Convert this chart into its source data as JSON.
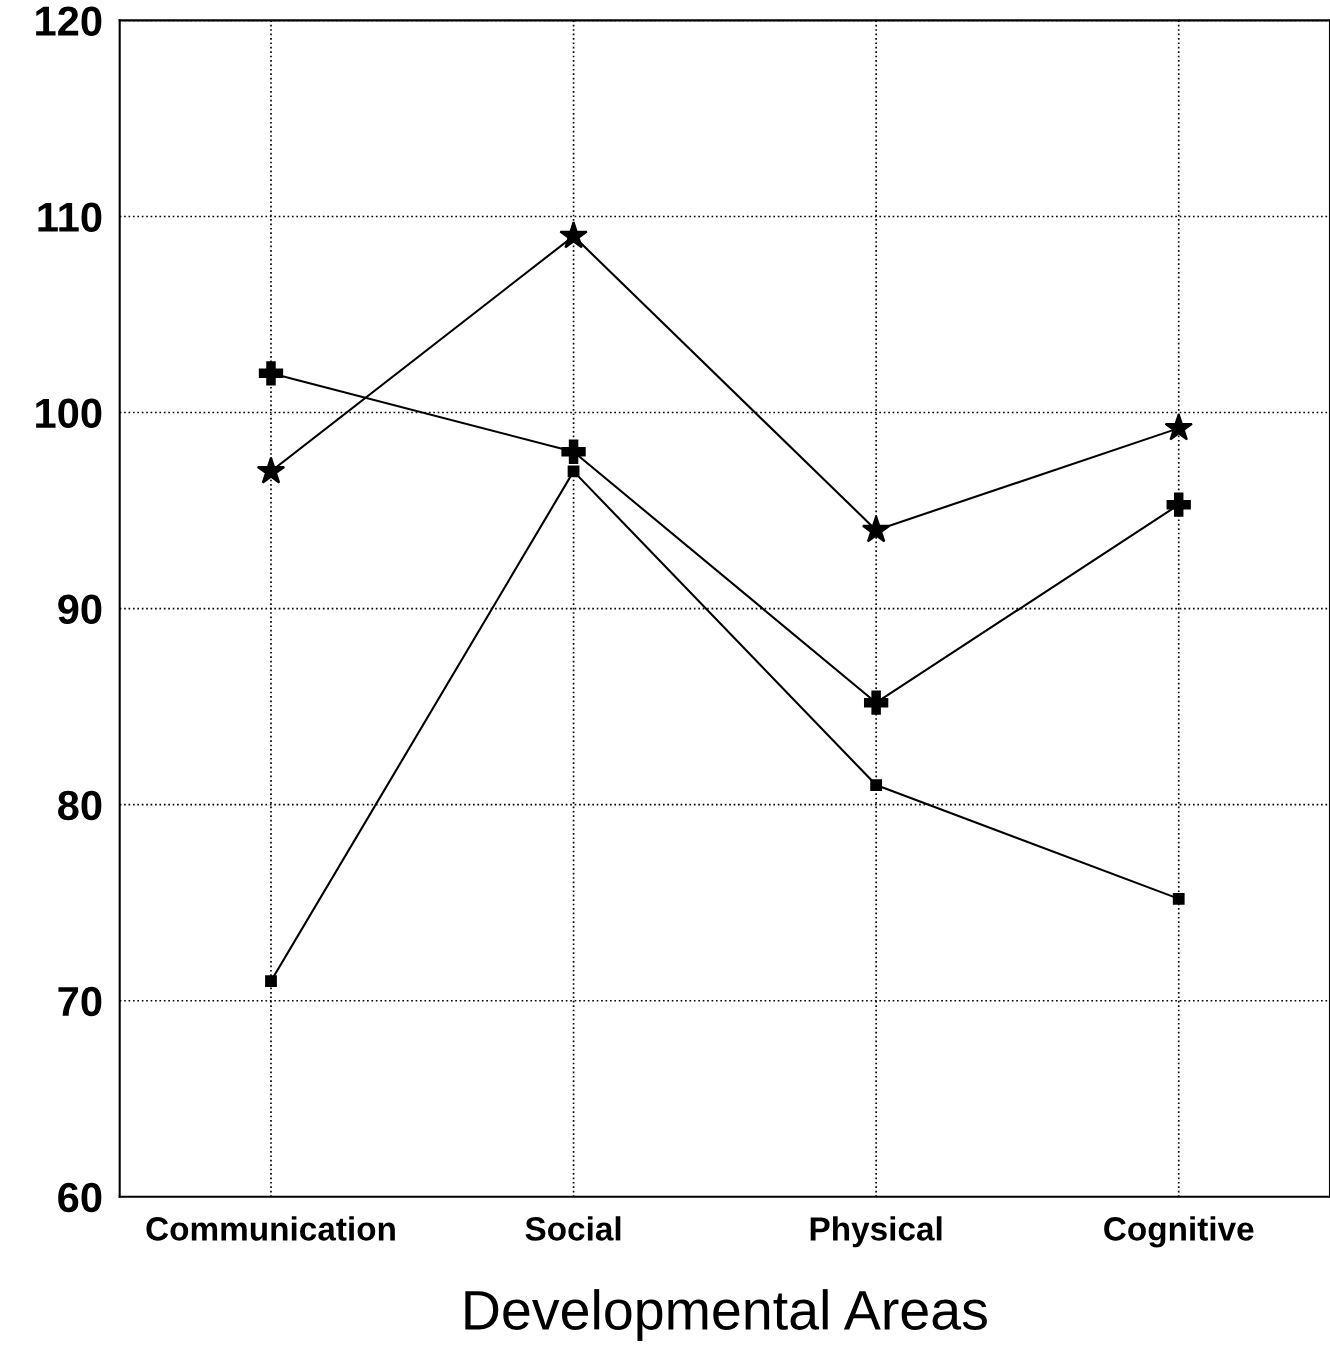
{
  "chart_data": {
    "type": "line",
    "xlabel": "Developmental Areas",
    "categories": [
      "Communication",
      "Social",
      "Physical",
      "Cognitive"
    ],
    "series": [
      {
        "color": "#000000",
        "marker": "star",
        "values": [
          97,
          109,
          94,
          99.2
        ]
      },
      {
        "color": "#000000",
        "marker": "cross",
        "values": [
          102,
          98,
          85.2,
          95.3
        ]
      },
      {
        "color": "#000000",
        "marker": "square",
        "values": [
          71,
          97,
          81,
          75.2
        ]
      }
    ],
    "ylim": [
      60,
      120
    ],
    "yticks": [
      60,
      70,
      80,
      90,
      100,
      110,
      120
    ],
    "grid": true,
    "line_style": "solid"
  }
}
